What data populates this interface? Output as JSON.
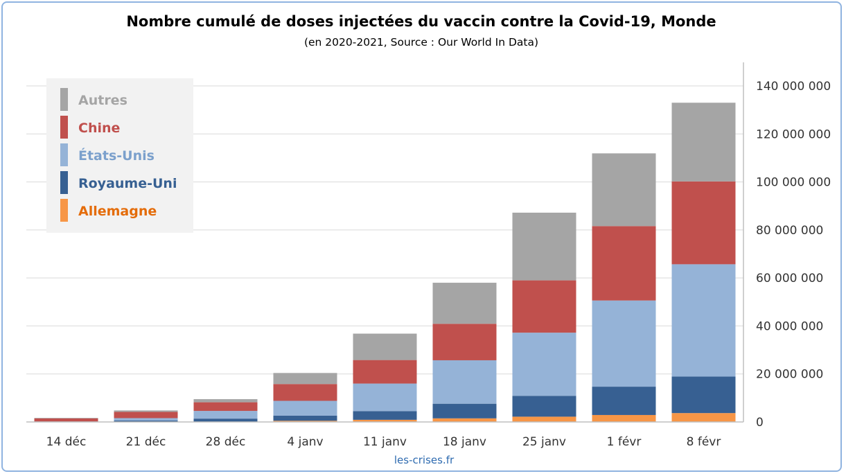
{
  "chart_data": {
    "type": "bar",
    "stacked": true,
    "title": "Nombre cumulé de doses injectées du vaccin contre la Covid-19, Monde",
    "subtitle": "(en 2020-2021, Source : Our World In Data)",
    "footer": "les-crises.fr",
    "categories": [
      "14 déc",
      "21 déc",
      "28 déc",
      "4 janv",
      "11 janv",
      "18 janv",
      "25 janv",
      "1 févr",
      "8 févr"
    ],
    "series": [
      {
        "name": "Allemagne",
        "color": "#f79646",
        "values": [
          0,
          0,
          100000,
          500000,
          900000,
          1500000,
          2200000,
          2900000,
          3700000
        ]
      },
      {
        "name": "Royaume-Uni",
        "color": "#376092",
        "values": [
          200000,
          600000,
          1300000,
          2100000,
          3600000,
          6100000,
          8700000,
          11800000,
          15200000
        ]
      },
      {
        "name": "États-Unis",
        "color": "#95b3d7",
        "values": [
          0,
          1000000,
          3200000,
          6200000,
          11500000,
          18100000,
          26300000,
          35900000,
          46800000
        ]
      },
      {
        "name": "Chine",
        "color": "#c0504d",
        "values": [
          1300000,
          2600000,
          3600000,
          7000000,
          9800000,
          15200000,
          21800000,
          31000000,
          34500000
        ]
      },
      {
        "name": "Autres",
        "color": "#a5a5a5",
        "values": [
          200000,
          600000,
          1300000,
          4600000,
          11000000,
          17100000,
          28200000,
          30300000,
          32800000
        ]
      }
    ],
    "ylim": [
      0,
      140000000
    ],
    "yticks": [
      "0",
      "20 000 000",
      "40 000 000",
      "60 000 000",
      "80 000 000",
      "100 000 000",
      "120 000 000",
      "140 000 000"
    ],
    "ytick_values": [
      0,
      20000000,
      40000000,
      60000000,
      80000000,
      100000000,
      120000000,
      140000000
    ],
    "y_axis_side": "right",
    "grid": true,
    "legend_position": "top-left",
    "legend_order": [
      "Autres",
      "Chine",
      "États-Unis",
      "Royaume-Uni",
      "Allemagne"
    ]
  }
}
